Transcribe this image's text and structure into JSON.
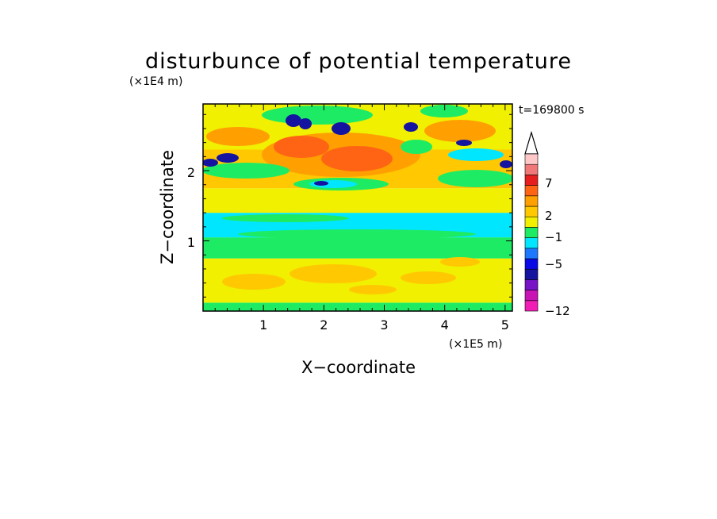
{
  "chart_data": {
    "type": "heatmap",
    "title": "disturbunce of potential temperature",
    "time_label": "t=169800 s",
    "xlabel": "X−coordinate",
    "ylabel": "Z−coordinate",
    "x_unit_label": "(×1E5 m)",
    "y_unit_label": "(×1E4 m)",
    "x_range": [
      0,
      5.12
    ],
    "y_range": [
      0,
      2.95
    ],
    "x_ticks": [
      "1",
      "2",
      "3",
      "4",
      "5"
    ],
    "y_ticks": [
      "1",
      "2"
    ],
    "colorbar": {
      "labels": [
        {
          "text": "7",
          "value": 7
        },
        {
          "text": "2",
          "value": 2
        },
        {
          "text": "−1",
          "value": -1
        },
        {
          "text": "−5",
          "value": -5
        },
        {
          "text": "−12",
          "value": -12
        }
      ],
      "colors": [
        "#f01eb4",
        "#c814b4",
        "#7814c8",
        "#1414a0",
        "#0a0ae6",
        "#1e78ff",
        "#00e6ff",
        "#1eeb64",
        "#f0f000",
        "#ffc800",
        "#ffa000",
        "#ff6414",
        "#e61e1e",
        "#f07878",
        "#ffc8c8"
      ]
    },
    "field_bands": [
      {
        "z_range": [
          0.0,
          0.12
        ],
        "value": "−1 to 0",
        "color": "#1eeb64"
      },
      {
        "z_range": [
          0.12,
          0.75
        ],
        "value": "0 to 1",
        "color": "#f0f000"
      },
      {
        "z_range": [
          0.75,
          1.05
        ],
        "value": "−1 to 0",
        "color": "#1eeb64"
      },
      {
        "z_range": [
          1.05,
          1.4
        ],
        "value": "−2 to −1",
        "color": "#00e6ff"
      },
      {
        "z_range": [
          1.4,
          1.75
        ],
        "value": "0 to 1",
        "color": "#f0f000"
      },
      {
        "z_range": [
          1.75,
          2.3
        ],
        "value": "1 to 2",
        "color": "#ffc800"
      },
      {
        "z_range": [
          2.3,
          2.95
        ],
        "value": "0 to 1",
        "color": "#f0f000"
      }
    ]
  }
}
